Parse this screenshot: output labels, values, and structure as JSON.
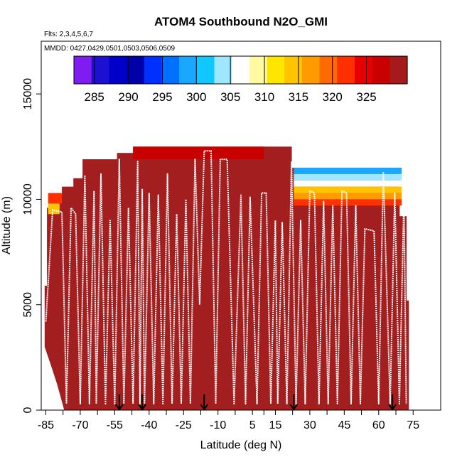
{
  "chart_data": {
    "type": "heatmap",
    "title": "ATOM4 Southbound N2O_GMI",
    "flights_note": "Flts: 2,3,4,5,6,7",
    "dates_note": "MMDD: 0427,0429,0501,0503,0506,0509",
    "xlabel": "Latitude (deg N)",
    "ylabel": "Altitude (m)",
    "xlim": [
      -87,
      87
    ],
    "ylim": [
      0,
      17500
    ],
    "x_ticks": [
      -85,
      -70,
      -55,
      -40,
      -25,
      -10,
      5,
      15,
      30,
      45,
      60,
      75
    ],
    "x_tick_labels": [
      "-85",
      "-70",
      "-55",
      "-40",
      "-25",
      "-10",
      "5",
      "15",
      "30",
      "45",
      "60",
      "75"
    ],
    "y_ticks": [
      0,
      5000,
      10000,
      15000
    ],
    "y_tick_labels": [
      "0",
      "5000",
      "10000",
      "15000"
    ],
    "colorbar": {
      "min": 282,
      "max": 331,
      "ticks": [
        285,
        290,
        295,
        300,
        305,
        310,
        315,
        320,
        325
      ],
      "tick_labels": [
        "285",
        "290",
        "295",
        "300",
        "305",
        "310",
        "315",
        "320",
        "325"
      ],
      "colors": [
        "#7f1cf2",
        "#1e10d0",
        "#0000c8",
        "#0000a8",
        "#0030ff",
        "#0070ff",
        "#1aa8ff",
        "#0fc8ff",
        "#9fe6ff",
        "#ffffff",
        "#fffaa0",
        "#ffe600",
        "#ffc400",
        "#ff9a00",
        "#ff6a00",
        "#ff3000",
        "#e60000",
        "#c80000",
        "#a51a1a"
      ]
    },
    "curtain": {
      "background_value": 330,
      "background_color": "#a31f1f",
      "columns": [
        {
          "lat0": -85.5,
          "lat1": -84.5,
          "top": 5900
        },
        {
          "lat0": -84.5,
          "lat1": -83,
          "top": 9600
        },
        {
          "lat0": -83,
          "lat1": -78,
          "top": 10200
        },
        {
          "lat0": -78,
          "lat1": -73,
          "top": 10600
        },
        {
          "lat0": -73,
          "lat1": -69,
          "top": 11000
        },
        {
          "lat0": -69,
          "lat1": -54,
          "top": 11900
        },
        {
          "lat0": -54,
          "lat1": -47,
          "top": 12200
        },
        {
          "lat0": -47,
          "lat1": 22,
          "top": 12500
        },
        {
          "lat0": 22,
          "lat1": 69,
          "top": 11500
        },
        {
          "lat0": 69,
          "lat1": 72,
          "top": 9200
        },
        {
          "lat0": 72,
          "lat1": 73,
          "top": 5200
        }
      ],
      "bottom_edge": [
        {
          "lat": -85.5,
          "alt": 3000
        },
        {
          "lat": -83,
          "alt": 2200
        },
        {
          "lat": -80,
          "alt": 1200
        },
        {
          "lat": -77,
          "alt": 0
        },
        {
          "lat": 73,
          "alt": 0
        }
      ],
      "upper_bands": [
        {
          "lat0": -84,
          "lat1": -79,
          "alt0": 9300,
          "alt1": 9800,
          "value": 314
        },
        {
          "lat0": -84,
          "lat1": -78,
          "alt0": 9800,
          "alt1": 10300,
          "value": 321
        },
        {
          "lat0": -47,
          "lat1": 10,
          "alt0": 11900,
          "alt1": 12500,
          "value": 326
        },
        {
          "lat0": 23,
          "lat1": 70,
          "alt0": 11200,
          "alt1": 11500,
          "value": 298
        },
        {
          "lat0": 23,
          "lat1": 70,
          "alt0": 10900,
          "alt1": 11200,
          "value": 304
        },
        {
          "lat0": 23,
          "lat1": 70,
          "alt0": 10600,
          "alt1": 10900,
          "value": 307
        },
        {
          "lat0": 23,
          "lat1": 70,
          "alt0": 10300,
          "alt1": 10600,
          "value": 313
        },
        {
          "lat0": 23,
          "lat1": 70,
          "alt0": 10000,
          "alt1": 10300,
          "value": 318
        },
        {
          "lat0": 23,
          "lat1": 70,
          "alt0": 9700,
          "alt1": 10000,
          "value": 322
        }
      ]
    },
    "flight_track": {
      "color": "#ffffff",
      "points": [
        [
          -85,
          4200
        ],
        [
          -82,
          9500
        ],
        [
          -78,
          9400
        ],
        [
          -76,
          300
        ],
        [
          -74,
          9600
        ],
        [
          -72,
          9300
        ],
        [
          -70,
          300
        ],
        [
          -68,
          11100
        ],
        [
          -66,
          300
        ],
        [
          -64,
          10400
        ],
        [
          -63,
          300
        ],
        [
          -61,
          11200
        ],
        [
          -59,
          300
        ],
        [
          -57,
          9000
        ],
        [
          -55,
          300
        ],
        [
          -53,
          11900
        ],
        [
          -51,
          300
        ],
        [
          -49,
          9600
        ],
        [
          -47,
          300
        ],
        [
          -45,
          11800
        ],
        [
          -44,
          300
        ],
        [
          -43,
          10500
        ],
        [
          -42,
          300
        ],
        [
          -40,
          10300
        ],
        [
          -38,
          300
        ],
        [
          -36,
          10200
        ],
        [
          -34,
          300
        ],
        [
          -32,
          11200
        ],
        [
          -30,
          300
        ],
        [
          -28,
          9300
        ],
        [
          -26,
          300
        ],
        [
          -24,
          10000
        ],
        [
          -22,
          300
        ],
        [
          -20,
          11900
        ],
        [
          -18,
          5000
        ],
        [
          -16,
          12300
        ],
        [
          -13,
          12300
        ],
        [
          -11,
          300
        ],
        [
          -9,
          11900
        ],
        [
          -6,
          11900
        ],
        [
          -3,
          300
        ],
        [
          0,
          10200
        ],
        [
          2,
          300
        ],
        [
          4,
          10100
        ],
        [
          7,
          300
        ],
        [
          9,
          10300
        ],
        [
          11,
          10300
        ],
        [
          13,
          300
        ],
        [
          15,
          9000
        ],
        [
          16,
          300
        ],
        [
          18,
          8900
        ],
        [
          20,
          300
        ],
        [
          22,
          11800
        ],
        [
          24,
          300
        ],
        [
          26,
          9000
        ],
        [
          28,
          300
        ],
        [
          30,
          10400
        ],
        [
          32,
          10300
        ],
        [
          34,
          300
        ],
        [
          36,
          9900
        ],
        [
          38,
          300
        ],
        [
          40,
          9700
        ],
        [
          42,
          300
        ],
        [
          44,
          10400
        ],
        [
          46,
          10300
        ],
        [
          48,
          300
        ],
        [
          50,
          9700
        ],
        [
          52,
          300
        ],
        [
          54,
          8600
        ],
        [
          58,
          8500
        ],
        [
          60,
          300
        ],
        [
          62,
          11300
        ],
        [
          65,
          300
        ],
        [
          67,
          10300
        ],
        [
          69,
          300
        ],
        [
          71,
          10000
        ],
        [
          72,
          300
        ]
      ]
    },
    "arrows": [
      {
        "lat": -53,
        "alt_top": 750
      },
      {
        "lat": -43,
        "alt_top": 750
      },
      {
        "lat": -16,
        "alt_top": 750
      },
      {
        "lat": 23,
        "alt_top": 750
      },
      {
        "lat": 66,
        "alt_top": 750
      }
    ]
  }
}
